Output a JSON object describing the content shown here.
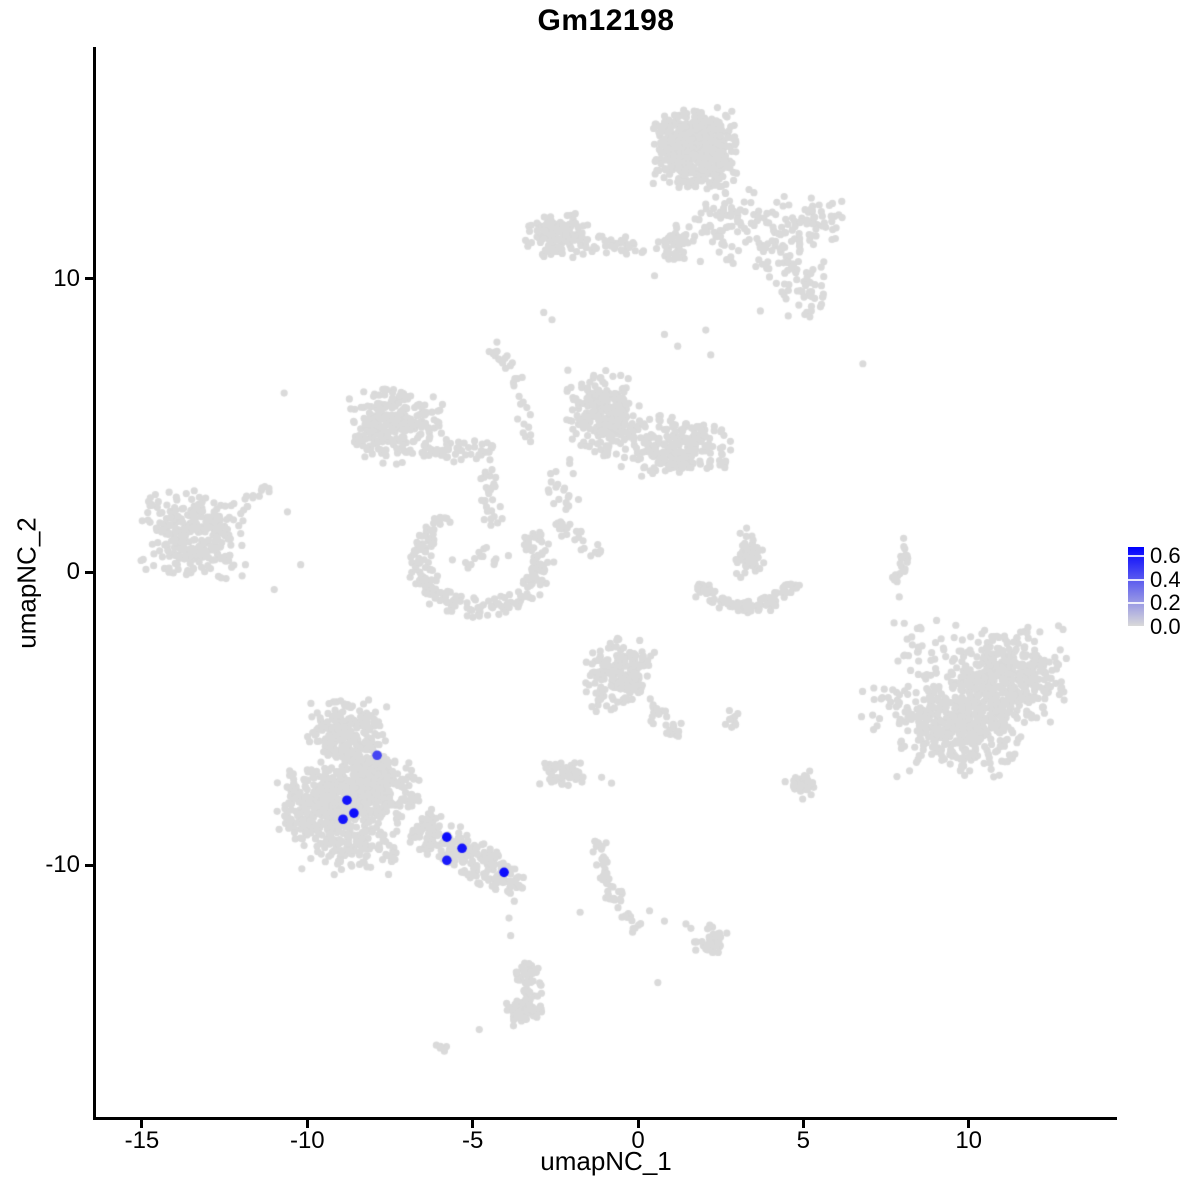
{
  "chart_data": {
    "type": "scatter",
    "title": "Gm12198",
    "xlabel": "umapNC_1",
    "ylabel": "umapNC_2",
    "x_ticks": [
      -15,
      -10,
      -5,
      0,
      5,
      10
    ],
    "y_ticks": [
      10,
      0,
      -10
    ],
    "xlim": [
      -16.4,
      14.5
    ],
    "ylim": [
      -18.6,
      17.9
    ],
    "grid": false,
    "legend": {
      "position": "right",
      "ticks": [
        0.6,
        0.4,
        0.2,
        0.0
      ],
      "min": 0.0,
      "max": 0.66
    },
    "colors": {
      "low": "#D9D9D9",
      "high": "#0000FF",
      "background_point": "#DADADA"
    },
    "point_radius": 3.6,
    "highlight_radius": 4.8,
    "background_clusters": [
      {
        "cx": 1.72,
        "cy": 14.45,
        "sx": 0.6,
        "sy": 0.66,
        "n": 560
      },
      {
        "cx": 2.7,
        "cy": 11.9,
        "sx": 0.5,
        "sy": 0.7,
        "n": 70
      },
      {
        "cx": 4.2,
        "cy": 11.3,
        "sx": 0.55,
        "sy": 0.75,
        "n": 70
      },
      {
        "cx": 5.4,
        "cy": 11.9,
        "sx": 0.4,
        "sy": 0.45,
        "n": 50
      },
      {
        "cx": 4.95,
        "cy": 9.6,
        "sx": 0.4,
        "sy": 0.5,
        "n": 45
      },
      {
        "cx": -2.4,
        "cy": 11.5,
        "sx": 0.52,
        "sy": 0.37,
        "n": 125
      },
      {
        "cx": 1.06,
        "cy": 11.18,
        "sx": 0.29,
        "sy": 0.34,
        "n": 45
      },
      {
        "cx": -7.3,
        "cy": 5.0,
        "sx": 0.68,
        "sy": 0.65,
        "n": 190
      },
      {
        "cx": -1.05,
        "cy": 5.4,
        "sx": 0.55,
        "sy": 0.72,
        "n": 230
      },
      {
        "cx": 1.15,
        "cy": 4.3,
        "sx": 0.81,
        "sy": 0.51,
        "n": 240
      },
      {
        "cx": -2.3,
        "cy": 2.9,
        "sx": 0.28,
        "sy": 0.5,
        "n": 20
      },
      {
        "cx": -13.5,
        "cy": 1.2,
        "sx": 0.78,
        "sy": 0.75,
        "n": 300
      },
      {
        "cx": 3.38,
        "cy": 0.58,
        "sx": 0.2,
        "sy": 0.44,
        "n": 60
      },
      {
        "cx": 9.7,
        "cy": -5.2,
        "sx": 0.9,
        "sy": 0.85,
        "n": 430
      },
      {
        "cx": 11.1,
        "cy": -3.6,
        "sx": 0.9,
        "sy": 0.85,
        "n": 430
      },
      {
        "cx": 8.6,
        "cy": -2.8,
        "sx": 0.5,
        "sy": 0.55,
        "n": 35
      },
      {
        "cx": 7.5,
        "cy": -4.6,
        "sx": 0.4,
        "sy": 0.45,
        "n": 25
      },
      {
        "cx": -0.54,
        "cy": -3.51,
        "sx": 0.5,
        "sy": 0.6,
        "n": 200
      },
      {
        "cx": -2.3,
        "cy": -6.82,
        "sx": 0.32,
        "sy": 0.29,
        "n": 55
      },
      {
        "cx": 2.75,
        "cy": -5.05,
        "sx": 0.18,
        "sy": 0.18,
        "n": 10
      },
      {
        "cx": 4.99,
        "cy": -7.26,
        "sx": 0.2,
        "sy": 0.24,
        "n": 38
      },
      {
        "cx": -8.9,
        "cy": -5.5,
        "sx": 0.55,
        "sy": 0.55,
        "n": 200
      },
      {
        "cx": -9.5,
        "cy": -7.9,
        "sx": 0.68,
        "sy": 0.62,
        "n": 330
      },
      {
        "cx": -7.9,
        "cy": -7.5,
        "sx": 0.62,
        "sy": 0.62,
        "n": 260
      },
      {
        "cx": -8.3,
        "cy": -6.6,
        "sx": 0.55,
        "sy": 0.55,
        "n": 120
      },
      {
        "cx": -8.6,
        "cy": -9.3,
        "sx": 0.75,
        "sy": 0.5,
        "n": 140
      },
      {
        "cx": -4.75,
        "cy": 0.35,
        "sx": 0.45,
        "sy": 0.35,
        "n": 15
      },
      {
        "cx": 2.27,
        "cy": -12.58,
        "sx": 0.27,
        "sy": 0.26,
        "n": 42
      },
      {
        "cx": -3.57,
        "cy": -14.87,
        "sx": 0.22,
        "sy": 0.31,
        "n": 30
      }
    ],
    "background_strings": [
      [
        -1.6,
        11.25,
        0.2,
        11.0,
        0.18,
        35,
        0
      ],
      [
        -4.55,
        7.8,
        -3.3,
        4.4,
        0.15,
        32,
        0.35
      ],
      [
        -8.25,
        4.4,
        -7.3,
        6.2,
        0.28,
        50,
        0
      ],
      [
        -6.6,
        4.2,
        -4.4,
        4.05,
        0.22,
        55,
        0
      ],
      [
        -4.6,
        3.5,
        -4.4,
        1.6,
        0.18,
        28,
        0
      ],
      [
        -2.5,
        1.8,
        -1.2,
        0.6,
        0.15,
        26,
        0
      ],
      [
        -6.35,
        1.3,
        -5.75,
        1.9,
        0.15,
        10,
        0
      ],
      [
        -11.9,
        2.3,
        -11.25,
        3.0,
        0.15,
        12,
        0
      ],
      [
        8.1,
        1.15,
        7.75,
        -0.35,
        0.08,
        22,
        0.12
      ],
      [
        0.4,
        -4.6,
        1.25,
        -5.6,
        0.2,
        26,
        0
      ],
      [
        -6.7,
        -8.6,
        -4.35,
        -10.3,
        0.38,
        190,
        0
      ],
      [
        -4.3,
        -10.35,
        -3.5,
        -10.8,
        0.25,
        40,
        0
      ],
      [
        -3.45,
        -13.3,
        -3.35,
        -15.3,
        0.22,
        65,
        0.15
      ],
      [
        -1.2,
        -9.1,
        0.05,
        -12.2,
        0.16,
        55,
        -0.3
      ],
      [
        -6.2,
        -16.0,
        -5.8,
        -16.35,
        0.08,
        6,
        0
      ]
    ],
    "background_arcs": [
      {
        "cx": -4.78,
        "cy": 0.34,
        "rx": 1.81,
        "ry": 1.6,
        "a1": 140,
        "a2": 395,
        "jr": 0.12,
        "n": 215
      },
      {
        "cx": 3.3,
        "cy": -0.2,
        "rx": 1.4,
        "ry": 1.0,
        "a1": 190,
        "a2": 350,
        "jr": 0.12,
        "n": 90
      }
    ],
    "background_singles": [
      [
        -10.7,
        6.1
      ],
      [
        6.8,
        7.1
      ],
      [
        -2.85,
        8.85
      ],
      [
        -2.6,
        8.6
      ],
      [
        3.7,
        8.9
      ],
      [
        2.05,
        8.25
      ],
      [
        0.8,
        8.1
      ],
      [
        1.2,
        7.7
      ],
      [
        2.2,
        7.4
      ],
      [
        0.5,
        10.1
      ],
      [
        -10.6,
        2.05
      ],
      [
        -10.2,
        0.25
      ],
      [
        -11.0,
        -0.6
      ],
      [
        2.0,
        -0.6
      ],
      [
        1.75,
        -0.85
      ],
      [
        7.9,
        -0.85
      ],
      [
        -1.1,
        -7.0
      ],
      [
        -0.8,
        -7.2
      ],
      [
        4.45,
        -7.15
      ],
      [
        -7.6,
        -4.6
      ],
      [
        -8.3,
        -4.5
      ],
      [
        -3.9,
        -11.8
      ],
      [
        -3.85,
        -12.4
      ],
      [
        -4.8,
        -15.6
      ],
      [
        -1.75,
        -11.6
      ],
      [
        0.35,
        -11.55
      ],
      [
        0.8,
        -11.9
      ],
      [
        1.45,
        -12.0
      ],
      [
        1.6,
        -12.15
      ],
      [
        0.6,
        -14.0
      ]
    ],
    "highlighted_points": [
      {
        "x": -7.89,
        "y": -6.25,
        "value": 0.45
      },
      {
        "x": -8.8,
        "y": -7.78,
        "value": 0.6
      },
      {
        "x": -8.59,
        "y": -8.22,
        "value": 0.62
      },
      {
        "x": -8.92,
        "y": -8.43,
        "value": 0.6
      },
      {
        "x": -5.78,
        "y": -9.04,
        "value": 0.62
      },
      {
        "x": -5.32,
        "y": -9.42,
        "value": 0.6
      },
      {
        "x": -5.78,
        "y": -9.83,
        "value": 0.58
      },
      {
        "x": -4.05,
        "y": -10.24,
        "value": 0.62
      }
    ]
  }
}
